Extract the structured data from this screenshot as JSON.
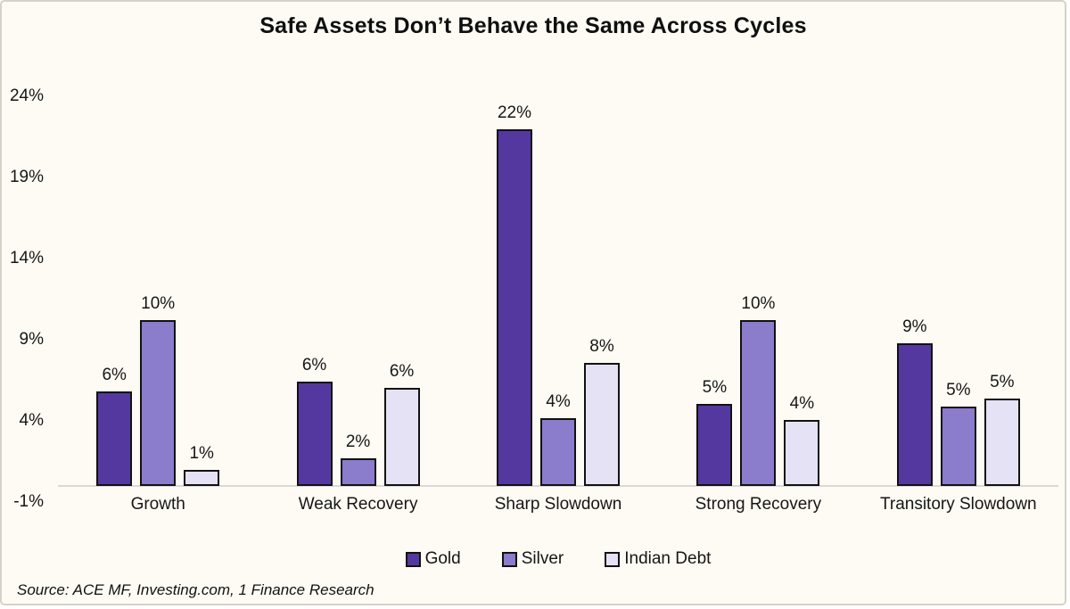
{
  "title": "Safe Assets Don’t Behave the Same Across Cycles",
  "source": {
    "text": "Source: ACE MF, Investing.com, 1 Finance Research"
  },
  "colors": {
    "gold": "#55389f",
    "silver": "#8b7ccc",
    "indian_debt": "#e4e2f4",
    "bar_outline": "#121212",
    "axis_line": "#d9d9d9",
    "background": "#fdfbf4"
  },
  "chart_data": {
    "type": "bar",
    "title": "Safe Assets Don’t Behave the Same Across Cycles",
    "categories": [
      "Growth",
      "Weak Recovery",
      "Sharp Slowdown",
      "Strong Recovery",
      "Transitory Slowdown"
    ],
    "series": [
      {
        "name": "Gold",
        "color": "#55389f",
        "values": [
          6,
          6,
          22,
          5,
          9
        ],
        "labels": [
          "6%",
          "6%",
          "22%",
          "5%",
          "9%"
        ],
        "values_precise": [
          5.8,
          6.45,
          22.0,
          5.05,
          8.8
        ]
      },
      {
        "name": "Silver",
        "color": "#8b7ccc",
        "values": [
          10,
          2,
          4,
          10,
          5
        ],
        "labels": [
          "10%",
          "2%",
          "4%",
          "10%",
          "5%"
        ],
        "values_precise": [
          10.2,
          1.7,
          4.2,
          10.2,
          4.9
        ]
      },
      {
        "name": "Indian Debt",
        "color": "#e4e2f4",
        "values": [
          1,
          6,
          8,
          4,
          5
        ],
        "labels": [
          "1%",
          "6%",
          "8%",
          "4%",
          "5%"
        ],
        "values_precise": [
          1.0,
          6.05,
          7.6,
          4.05,
          5.4
        ]
      }
    ],
    "xlabel": "",
    "ylabel": "",
    "y_ticks": [
      {
        "value": 24,
        "label": "24%"
      },
      {
        "value": 19,
        "label": "19%"
      },
      {
        "value": 14,
        "label": "14%"
      },
      {
        "value": 9,
        "label": "9%"
      },
      {
        "value": 4,
        "label": "4%"
      },
      {
        "value": -1,
        "label": "-1%"
      }
    ],
    "ylim": [
      -1,
      24.5
    ],
    "grid": false,
    "data_labels": true,
    "legend_position": "bottom",
    "legend_items": [
      "Gold",
      "Silver",
      "Indian Debt"
    ]
  }
}
